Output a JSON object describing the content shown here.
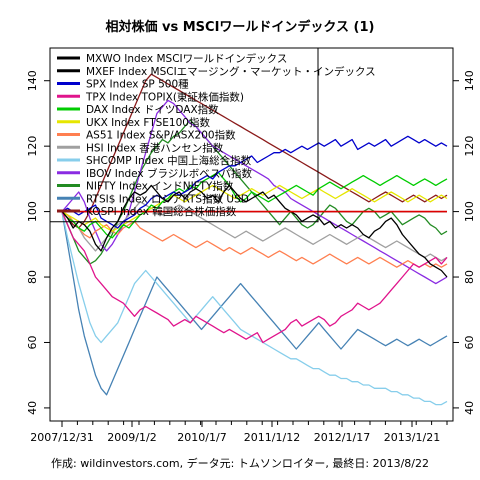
{
  "chart_data": {
    "type": "line",
    "title": "相対株価 vs MSCIワールドインデックス (1)",
    "caption": "作成: wildinvestors.com, データ元: トムソンロイター, 最終日: 2013/8/22",
    "x_ticks": [
      "2007/12/31",
      "2009/1/2",
      "2010/1/7",
      "2011/1/12",
      "2012/1/17",
      "2013/1/21"
    ],
    "y_ticks": [
      40,
      60,
      80,
      100,
      120,
      140
    ],
    "ylim": [
      36,
      150
    ],
    "grid": false,
    "legend_position": "top-left",
    "reference_line_value": 100,
    "series": [
      {
        "name": "MXWO Index MSCIワールドインデックス",
        "color": "#000000",
        "values": [
          100,
          100,
          100,
          100,
          100,
          100,
          100,
          100,
          100,
          100,
          100,
          100,
          100,
          100,
          100,
          100,
          100,
          100,
          100,
          100,
          100,
          100,
          100,
          100,
          100,
          100,
          100,
          100,
          100,
          100,
          100,
          100,
          100,
          100,
          100,
          100,
          100,
          100,
          100,
          100,
          100,
          100,
          100,
          100,
          100,
          100,
          100,
          100,
          100,
          100,
          100,
          100,
          100,
          100,
          100,
          100,
          100,
          100,
          100,
          100,
          100,
          100,
          100,
          100,
          100,
          100,
          100,
          100,
          100,
          100
        ]
      },
      {
        "name": "MXEF Index MSCIエマージング・マーケット・インデックス",
        "color": "#000000",
        "values": [
          100,
          98,
          95,
          97,
          96,
          94,
          90,
          88,
          92,
          95,
          97,
          101,
          104,
          106,
          105,
          106,
          108,
          106,
          104,
          103,
          105,
          106,
          104,
          106,
          107,
          106,
          104,
          105,
          103,
          106,
          108,
          106,
          104,
          103,
          104,
          105,
          106,
          104,
          105,
          103,
          101,
          100,
          99,
          97,
          98,
          99,
          98,
          96,
          97,
          95,
          96,
          95,
          96,
          95,
          93,
          92,
          94,
          95,
          97,
          98,
          96,
          93,
          91,
          89,
          87,
          86,
          84,
          83,
          82,
          80
        ]
      },
      {
        "name": "SPX Index SP 500種",
        "color": "#0000cc",
        "values": [
          100,
          101,
          100,
          99,
          100,
          101,
          102,
          98,
          97,
          96,
          95,
          97,
          98,
          99,
          101,
          102,
          104,
          105,
          104,
          105,
          106,
          105,
          106,
          107,
          109,
          110,
          111,
          110,
          112,
          113,
          114,
          114,
          115,
          116,
          117,
          115,
          116,
          117,
          118,
          118,
          119,
          118,
          119,
          120,
          119,
          120,
          121,
          120,
          121,
          122,
          120,
          121,
          122,
          119,
          120,
          121,
          120,
          121,
          122,
          120,
          121,
          122,
          123,
          122,
          121,
          122,
          121,
          120,
          121,
          120
        ]
      },
      {
        "name": "TPX Index TOPIX(東証株価指数)",
        "color": "#e0148c",
        "values": [
          100,
          96,
          92,
          90,
          88,
          84,
          80,
          78,
          76,
          74,
          73,
          72,
          70,
          68,
          70,
          71,
          70,
          69,
          68,
          67,
          65,
          66,
          67,
          66,
          68,
          67,
          66,
          65,
          64,
          63,
          64,
          63,
          62,
          61,
          62,
          63,
          60,
          61,
          62,
          63,
          64,
          66,
          67,
          65,
          66,
          67,
          68,
          67,
          65,
          66,
          68,
          69,
          70,
          72,
          71,
          70,
          71,
          72,
          74,
          76,
          78,
          80,
          82,
          84,
          83,
          84,
          85,
          86,
          84,
          86
        ]
      },
      {
        "name": "DAX Index ドイツDAX指数",
        "color": "#00cc00",
        "values": [
          100,
          98,
          97,
          95,
          94,
          96,
          97,
          95,
          93,
          92,
          94,
          96,
          95,
          97,
          99,
          100,
          102,
          101,
          103,
          104,
          106,
          107,
          106,
          108,
          107,
          109,
          110,
          111,
          112,
          110,
          108,
          105,
          103,
          104,
          106,
          105,
          104,
          103,
          104,
          105,
          106,
          107,
          108,
          107,
          106,
          105,
          107,
          108,
          109,
          108,
          107,
          108,
          109,
          110,
          111,
          110,
          109,
          108,
          109,
          110,
          111,
          110,
          109,
          108,
          109,
          110,
          109,
          108,
          109,
          110
        ]
      },
      {
        "name": "UKX Index FTSE100指数",
        "color": "#e6e600",
        "values": [
          100,
          99,
          98,
          97,
          96,
          97,
          98,
          96,
          95,
          94,
          95,
          96,
          97,
          98,
          99,
          100,
          101,
          102,
          103,
          104,
          105,
          104,
          103,
          104,
          105,
          106,
          107,
          108,
          107,
          106,
          105,
          104,
          105,
          106,
          107,
          106,
          105,
          106,
          107,
          108,
          107,
          106,
          105,
          104,
          105,
          106,
          107,
          106,
          105,
          104,
          105,
          106,
          107,
          106,
          105,
          104,
          103,
          104,
          105,
          106,
          105,
          104,
          103,
          104,
          105,
          104,
          103,
          104,
          105,
          104
        ]
      },
      {
        "name": "AS51 Index S&P/ASX200指数",
        "color": "#ff7f50",
        "values": [
          100,
          99,
          97,
          95,
          93,
          92,
          94,
          95,
          96,
          94,
          93,
          95,
          96,
          97,
          95,
          94,
          93,
          92,
          91,
          92,
          93,
          92,
          91,
          90,
          89,
          90,
          91,
          90,
          89,
          88,
          89,
          88,
          87,
          88,
          89,
          88,
          87,
          86,
          87,
          88,
          87,
          86,
          85,
          86,
          85,
          84,
          85,
          86,
          87,
          86,
          85,
          84,
          85,
          86,
          85,
          84,
          85,
          86,
          85,
          84,
          83,
          84,
          85,
          84,
          83,
          84,
          83,
          84,
          83,
          84
        ]
      },
      {
        "name": "HSI Index 香港ハンセン指数",
        "color": "#a0a0a0",
        "values": [
          100,
          99,
          97,
          95,
          92,
          90,
          88,
          90,
          92,
          94,
          96,
          97,
          99,
          101,
          103,
          102,
          101,
          100,
          99,
          100,
          101,
          102,
          101,
          100,
          99,
          98,
          97,
          96,
          95,
          94,
          93,
          92,
          93,
          94,
          93,
          92,
          91,
          92,
          93,
          94,
          95,
          94,
          93,
          92,
          91,
          90,
          91,
          92,
          93,
          92,
          91,
          90,
          91,
          92,
          93,
          92,
          91,
          90,
          89,
          90,
          91,
          90,
          89,
          88,
          87,
          86,
          87,
          86,
          85,
          86
        ]
      },
      {
        "name": "SHCOMP Index 中国上海総合指数",
        "color": "#87ceeb",
        "values": [
          100,
          92,
          85,
          78,
          72,
          66,
          62,
          60,
          62,
          64,
          66,
          70,
          74,
          78,
          80,
          82,
          80,
          78,
          76,
          74,
          72,
          70,
          68,
          66,
          68,
          70,
          72,
          74,
          72,
          70,
          68,
          66,
          64,
          63,
          62,
          61,
          60,
          59,
          58,
          57,
          56,
          55,
          55,
          54,
          53,
          52,
          52,
          51,
          50,
          50,
          49,
          49,
          48,
          48,
          47,
          47,
          46,
          46,
          46,
          45,
          45,
          44,
          44,
          43,
          43,
          42,
          42,
          41,
          41,
          42
        ]
      },
      {
        "name": "IBOV Index ブラジルボベスパ指数",
        "color": "#8a2be2",
        "values": [
          100,
          102,
          104,
          106,
          103,
          98,
          94,
          90,
          88,
          90,
          93,
          96,
          100,
          106,
          112,
          118,
          124,
          130,
          132,
          134,
          133,
          131,
          129,
          127,
          126,
          124,
          122,
          120,
          119,
          118,
          117,
          116,
          115,
          114,
          113,
          112,
          111,
          110,
          108,
          107,
          106,
          104,
          103,
          102,
          101,
          100,
          99,
          98,
          97,
          96,
          95,
          94,
          93,
          92,
          91,
          90,
          89,
          88,
          87,
          86,
          85,
          84,
          83,
          82,
          81,
          80,
          79,
          78,
          79,
          80
        ]
      },
      {
        "name": "NIFTY Index インドNIFTY指数",
        "color": "#228b22",
        "values": [
          100,
          96,
          92,
          88,
          86,
          84,
          85,
          87,
          90,
          93,
          97,
          100,
          104,
          108,
          112,
          115,
          118,
          120,
          122,
          121,
          123,
          124,
          126,
          128,
          126,
          124,
          122,
          120,
          118,
          116,
          114,
          112,
          110,
          108,
          106,
          104,
          102,
          100,
          98,
          96,
          98,
          100,
          98,
          96,
          95,
          96,
          98,
          100,
          102,
          101,
          99,
          97,
          96,
          98,
          100,
          101,
          100,
          98,
          99,
          100,
          98,
          96,
          97,
          98,
          99,
          98,
          96,
          95,
          93,
          94
        ]
      },
      {
        "name": "RTSI$ Index ロシアRTS指数 USD",
        "color": "#4682b4",
        "values": [
          100,
          90,
          80,
          70,
          62,
          56,
          50,
          46,
          44,
          48,
          52,
          56,
          60,
          64,
          68,
          72,
          76,
          80,
          78,
          76,
          74,
          72,
          70,
          68,
          66,
          64,
          66,
          68,
          70,
          72,
          74,
          76,
          78,
          76,
          74,
          72,
          70,
          68,
          66,
          64,
          62,
          60,
          58,
          60,
          62,
          64,
          66,
          64,
          62,
          60,
          58,
          60,
          62,
          64,
          63,
          62,
          61,
          60,
          59,
          60,
          61,
          60,
          59,
          60,
          61,
          60,
          59,
          60,
          61,
          62
        ]
      },
      {
        "name": "KOSPI Index 韓国総合株価指数",
        "color": "#8b1a1a",
        "values": [
          100,
          98,
          96,
          95,
          97,
          100,
          104,
          108,
          112,
          116,
          120,
          124,
          128,
          132,
          136,
          140,
          142,
          141,
          140,
          139,
          138,
          137,
          136,
          135,
          134,
          133,
          132,
          131,
          130,
          129,
          128,
          127,
          126,
          125,
          124,
          123,
          122,
          121,
          120,
          119,
          118,
          117,
          116,
          115,
          114,
          113,
          112,
          111,
          110,
          109,
          108,
          107,
          106,
          105,
          104,
          103,
          104,
          105,
          106,
          105,
          104,
          103,
          104,
          105,
          104,
          103,
          104,
          105,
          104,
          105
        ]
      }
    ]
  }
}
